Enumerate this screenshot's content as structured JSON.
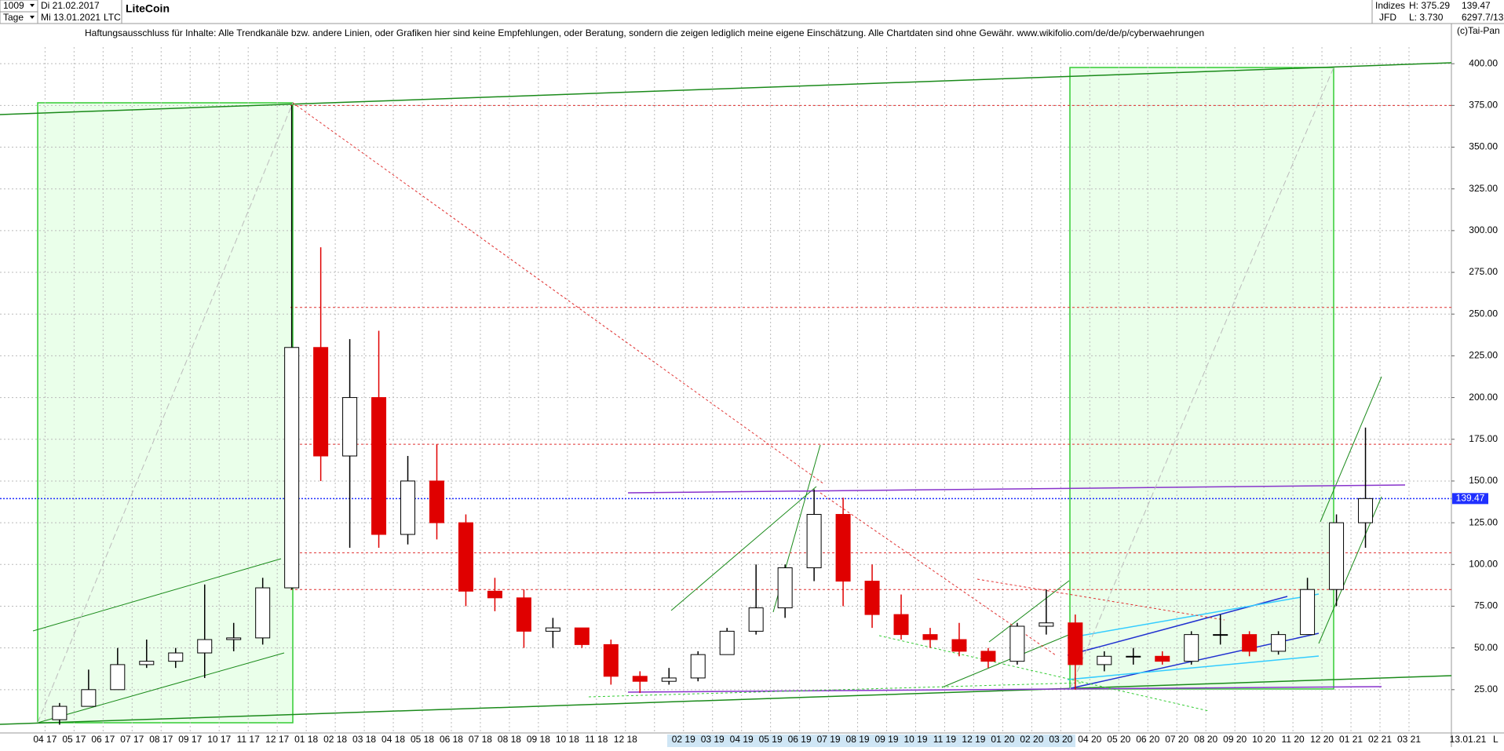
{
  "header": {
    "count": "1009",
    "start_day": "Di 21.02.2017",
    "period": "Tage",
    "end_day": "Mi 13.01.2021",
    "symbol": "LTC",
    "market": "Indizes",
    "broker": "JFD",
    "high": "H: 375.29",
    "low": "L: 3.730",
    "last": "139.47",
    "info": "6297.7/13",
    "copyright": "(c)Tai-Pan"
  },
  "chart_data": {
    "type": "candlestick",
    "title": "LiteCoin",
    "subtitle": "Haftungsausschluss für Inhalte: Alle Trendkanäle bzw. andere Linien, oder Grafiken hier sind keine Empfehlungen, oder Beratung, sondern die zeigen lediglich meine eigene Einschätzung. Alle Chartdaten sind ohne Gewähr.  www.wikifolio.com/de/de/p/cyberwaehrungen",
    "categories": [
      "04 17",
      "05 17",
      "06 17",
      "07 17",
      "08 17",
      "09 17",
      "10 17",
      "11 17",
      "12 17",
      "01 18",
      "02 18",
      "03 18",
      "04 18",
      "05 18",
      "06 18",
      "07 18",
      "08 18",
      "09 18",
      "10 18",
      "11 18",
      "12 18",
      null,
      "02 19",
      "03 19",
      "04 19",
      "05 19",
      "06 19",
      "07 19",
      "08 19",
      "09 19",
      "10 19",
      "11 19",
      "12 19",
      "01 20",
      "02 20",
      "03 20",
      "04 20",
      "05 20",
      "06 20",
      "07 20",
      "08 20",
      "09 20",
      "10 20",
      "11 20",
      "12 20",
      "01 21",
      "02 21",
      "03 21"
    ],
    "open": [
      7,
      15,
      25,
      40,
      42,
      47,
      55,
      56,
      86,
      230,
      165,
      200,
      118,
      150,
      125,
      84,
      80,
      60,
      62,
      52,
      33,
      30,
      32,
      46,
      60,
      74,
      98,
      130,
      90,
      70,
      58,
      55,
      48,
      42,
      63,
      65,
      40,
      45,
      45,
      42,
      58,
      58,
      48,
      58,
      85,
      125,
      null,
      null
    ],
    "high": [
      17,
      37,
      50,
      55,
      50,
      88,
      65,
      92,
      375,
      290,
      235,
      240,
      165,
      172,
      130,
      92,
      85,
      68,
      62,
      55,
      36,
      38,
      48,
      62,
      100,
      100,
      145,
      140,
      100,
      82,
      62,
      65,
      50,
      65,
      85,
      70,
      48,
      50,
      48,
      60,
      70,
      60,
      60,
      92,
      130,
      182,
      null,
      null
    ],
    "low": [
      4,
      15,
      25,
      38,
      38,
      32,
      48,
      52,
      85,
      150,
      110,
      110,
      112,
      115,
      75,
      72,
      50,
      50,
      50,
      28,
      23,
      28,
      30,
      46,
      58,
      68,
      90,
      75,
      62,
      55,
      50,
      45,
      38,
      40,
      58,
      25,
      36,
      40,
      40,
      40,
      52,
      45,
      46,
      58,
      75,
      110,
      null,
      null
    ],
    "close": [
      15,
      25,
      40,
      42,
      47,
      55,
      56,
      86,
      230,
      165,
      200,
      118,
      150,
      125,
      84,
      80,
      60,
      62,
      52,
      33,
      30,
      32,
      46,
      60,
      74,
      98,
      130,
      90,
      70,
      58,
      55,
      48,
      42,
      63,
      65,
      40,
      45,
      45,
      42,
      58,
      58,
      48,
      58,
      85,
      125,
      139.47,
      null,
      null
    ],
    "up_color": "#000000",
    "down_color": "#e00000",
    "levels": [
      {
        "value": 375,
        "color": "#e03030"
      },
      {
        "value": 254,
        "color": "#e03030"
      },
      {
        "value": 172,
        "color": "#e03030"
      },
      {
        "value": 107,
        "color": "#e03030"
      },
      {
        "value": 85,
        "color": "#e03030"
      },
      {
        "value": 139.47,
        "color": "#2030ff"
      }
    ],
    "ylim": [
      0,
      425
    ],
    "yticks": [
      {
        "value": 25,
        "label": "25.00"
      },
      {
        "value": 50,
        "label": "50.00"
      },
      {
        "value": 75,
        "label": "75.00"
      },
      {
        "value": 100,
        "label": "100.00"
      },
      {
        "value": 125,
        "label": "125.00"
      },
      {
        "value": 150,
        "label": "150.00"
      },
      {
        "value": 175,
        "label": "175.00"
      },
      {
        "value": 200,
        "label": "200.00"
      },
      {
        "value": 225,
        "label": "225.00"
      },
      {
        "value": 250,
        "label": "250.00"
      },
      {
        "value": 275,
        "label": "275.00"
      },
      {
        "value": 300,
        "label": "300.00"
      },
      {
        "value": 325,
        "label": "325.00"
      },
      {
        "value": 350,
        "label": "350.00"
      },
      {
        "value": 375,
        "label": "375.00"
      },
      {
        "value": 400,
        "label": "400.00"
      }
    ],
    "last_date": "13.01.21",
    "scale_mode": "L",
    "grid": true
  }
}
